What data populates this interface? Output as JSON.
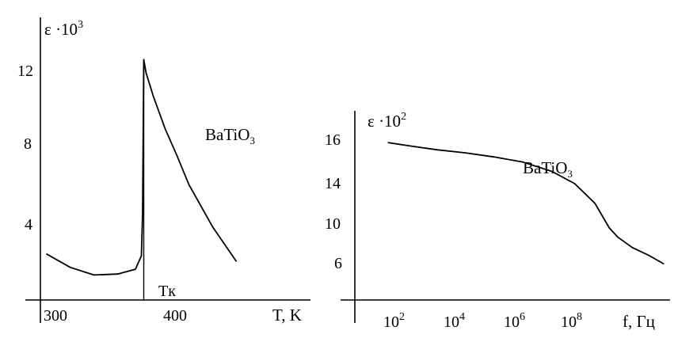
{
  "chart_data": [
    {
      "type": "line",
      "ylabel": "ε ·10",
      "ylabel_exp": "3",
      "xlabel": "T, K",
      "x_tick_labels": [
        "300",
        "400"
      ],
      "y_tick_labels": [
        "12",
        "8",
        "4"
      ],
      "annotation": {
        "base": "BaTiO",
        "sub": "3"
      },
      "marker": {
        "label": "Tк",
        "x": 382
      },
      "series": [
        {
          "x": [
            300,
            320,
            340,
            360,
            375,
            380,
            381,
            382,
            384,
            390,
            400,
            410,
            420,
            440,
            460
          ],
          "y": [
            2.4,
            1.7,
            1.3,
            1.35,
            1.6,
            2.3,
            4.5,
            12.5,
            11.8,
            10.6,
            8.9,
            7.5,
            6.0,
            3.8,
            2.0
          ]
        }
      ],
      "xlim": [
        295,
        475
      ],
      "ylim": [
        0,
        15
      ],
      "grid": false
    },
    {
      "type": "line",
      "ylabel": "ε ·10",
      "ylabel_exp": "2",
      "xlabel": "f, Гц",
      "x_tick_labels": [
        {
          "base": "10",
          "exp": "2",
          "logx": 2
        },
        {
          "base": "10",
          "exp": "4",
          "logx": 4
        },
        {
          "base": "10",
          "exp": "6",
          "logx": 6
        },
        {
          "base": "10",
          "exp": "8",
          "logx": 8
        }
      ],
      "y_tick_labels": [
        "16",
        "14",
        "10",
        "6"
      ],
      "annotation": {
        "base": "BaTiO",
        "sub": "3"
      },
      "series": [
        {
          "log10_x": [
            1.3,
            2,
            3,
            4,
            5,
            6,
            7,
            7.8,
            8.5,
            9.0,
            9.3,
            9.8,
            10.4,
            10.9
          ],
          "y_on_axis_scale": [
            15.3,
            15.0,
            14.6,
            14.3,
            13.9,
            13.4,
            12.5,
            11.3,
            9.4,
            7.0,
            6.1,
            5.1,
            4.3,
            3.5
          ]
        }
      ],
      "y_scale_note": "uneven tick labels",
      "xlim_log10": [
        0.15,
        11.2
      ],
      "ylim": [
        0,
        17.5
      ],
      "grid": false
    }
  ]
}
